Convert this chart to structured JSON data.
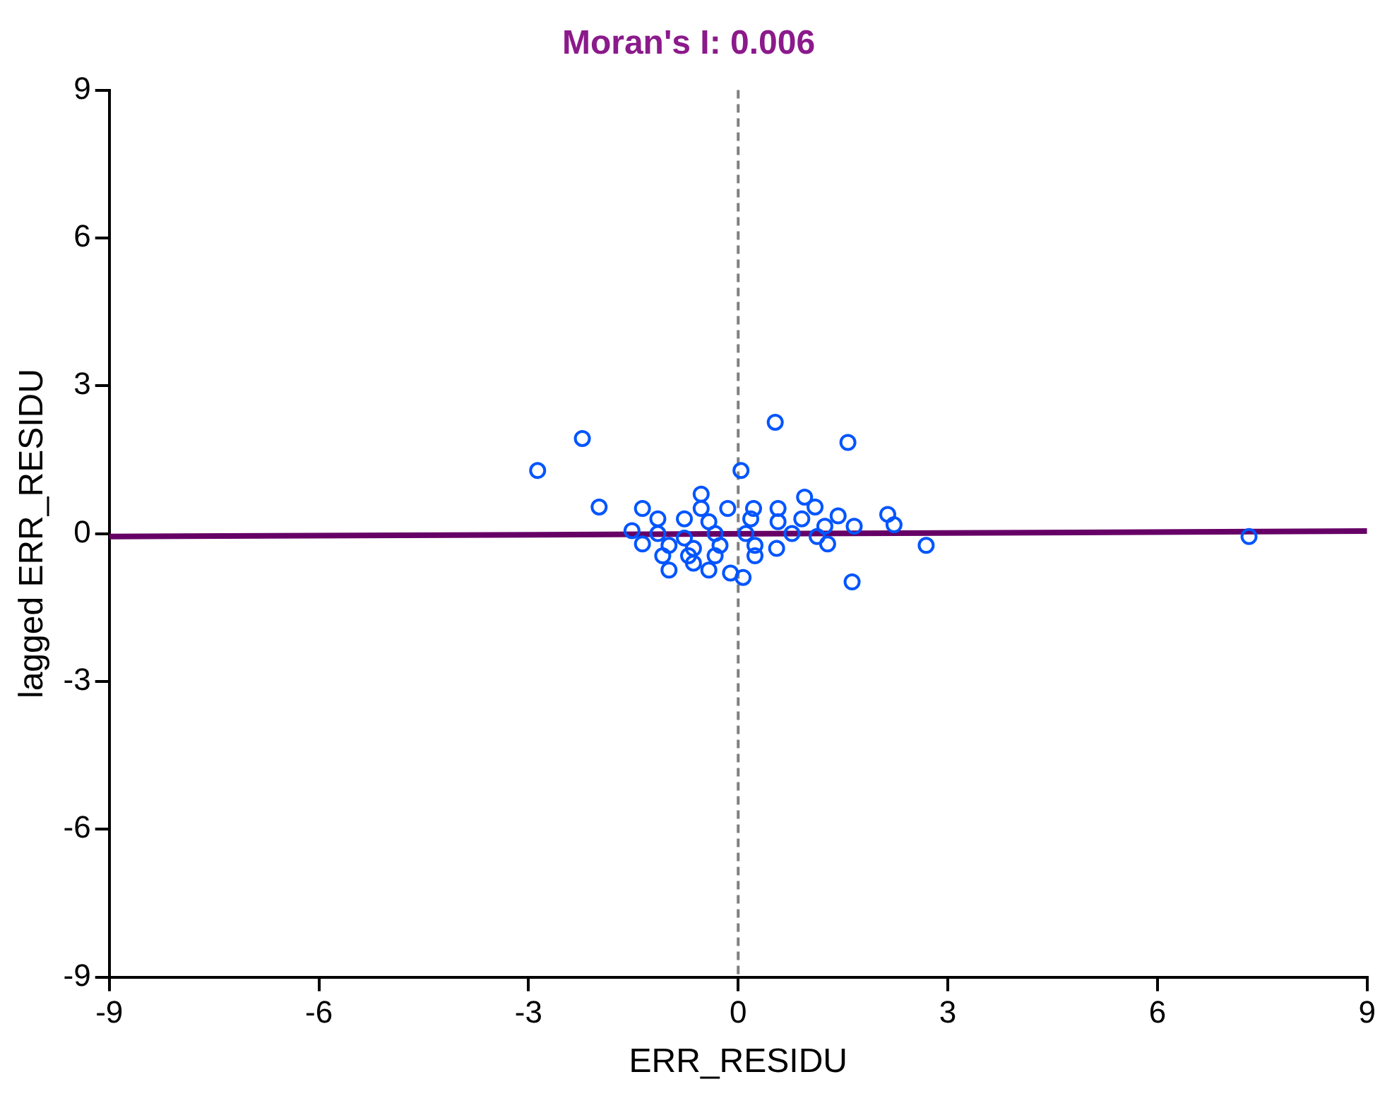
{
  "chart_data": {
    "type": "scatter",
    "title": "Moran's I: 0.006",
    "xlabel": "ERR_RESIDU",
    "ylabel": "lagged ERR_RESIDU",
    "xlim": [
      -9,
      9
    ],
    "xticks": [
      -9,
      -6,
      -3,
      0,
      3,
      6,
      9
    ],
    "ylim": [
      -9,
      9
    ],
    "yticks": [
      -9,
      -6,
      -3,
      0,
      3,
      6,
      9
    ],
    "grid": false,
    "legend": false,
    "ref_lines": [
      {
        "axis": "x",
        "value": 0,
        "color": "#808080",
        "line_style": "dashed"
      }
    ],
    "series": [
      {
        "marker": "circle",
        "color": "#0055ff",
        "x": [
          -2.87,
          -2.23,
          -1.99,
          0.53,
          1.57,
          0.04,
          1.63,
          2.69,
          7.31,
          2.14,
          2.23,
          -0.53,
          -1.37,
          -0.53,
          -0.15,
          0.22,
          0.57,
          0.95,
          1.1,
          1.43,
          -1.15,
          -0.77,
          -0.42,
          0.18,
          0.57,
          0.91,
          1.24,
          1.66,
          -1.52,
          -1.15,
          -0.77,
          -0.33,
          0.11,
          0.77,
          1.13,
          -1.37,
          -0.99,
          -0.64,
          -0.26,
          0.24,
          0.55,
          1.28,
          -1.08,
          -0.71,
          -0.33,
          0.24,
          -0.99,
          -0.42,
          0.07,
          -0.11,
          -0.64
        ],
        "values": [
          1.28,
          1.93,
          0.54,
          2.26,
          1.85,
          1.28,
          -0.98,
          -0.24,
          -0.06,
          0.39,
          0.18,
          0.8,
          0.51,
          0.51,
          0.51,
          0.51,
          0.51,
          0.74,
          0.54,
          0.36,
          0.3,
          0.3,
          0.24,
          0.3,
          0.24,
          0.3,
          0.15,
          0.15,
          0.06,
          0,
          -0.09,
          0,
          0,
          0,
          -0.06,
          -0.21,
          -0.24,
          -0.3,
          -0.24,
          -0.24,
          -0.3,
          -0.21,
          -0.45,
          -0.45,
          -0.45,
          -0.45,
          -0.74,
          -0.74,
          -0.89,
          -0.8,
          -0.6
        ]
      },
      {
        "type": "line",
        "marker": "none",
        "color": "#660066",
        "x": [
          -9,
          9
        ],
        "values": [
          -0.06,
          0.05
        ]
      }
    ]
  }
}
